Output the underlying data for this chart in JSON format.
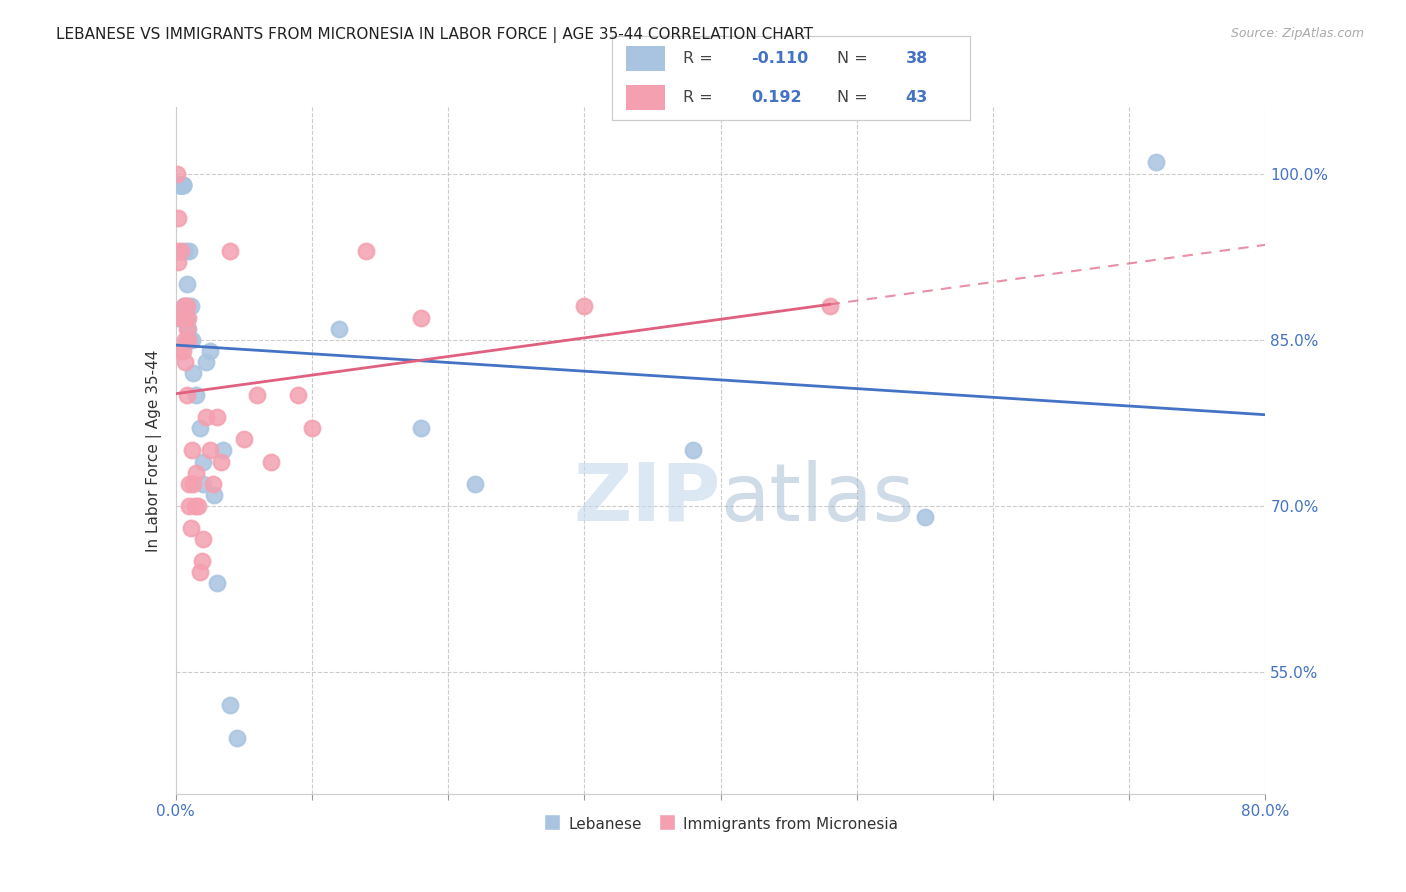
{
  "title": "LEBANESE VS IMMIGRANTS FROM MICRONESIA IN LABOR FORCE | AGE 35-44 CORRELATION CHART",
  "source": "Source: ZipAtlas.com",
  "ylabel": "In Labor Force | Age 35-44",
  "ylabel_right_ticks": [
    "100.0%",
    "85.0%",
    "70.0%",
    "55.0%"
  ],
  "ylabel_right_values": [
    1.0,
    0.85,
    0.7,
    0.55
  ],
  "legend_blue_r": "-0.110",
  "legend_blue_n": "38",
  "legend_pink_r": "0.192",
  "legend_pink_n": "43",
  "blue_color": "#a8c4e0",
  "pink_color": "#f4a0b0",
  "blue_line_color": "#4472c4",
  "pink_line_color": "#e06080",
  "watermark_zip": "ZIP",
  "watermark_atlas": "atlas",
  "blue_points_x": [
    0.001,
    0.002,
    0.003,
    0.003,
    0.004,
    0.004,
    0.005,
    0.005,
    0.005,
    0.006,
    0.006,
    0.007,
    0.008,
    0.008,
    0.008,
    0.009,
    0.01,
    0.01,
    0.011,
    0.012,
    0.013,
    0.015,
    0.018,
    0.02,
    0.02,
    0.022,
    0.025,
    0.028,
    0.03,
    0.035,
    0.04,
    0.045,
    0.12,
    0.18,
    0.22,
    0.38,
    0.55,
    0.72
  ],
  "blue_points_y": [
    0.87,
    0.99,
    0.99,
    0.99,
    0.99,
    0.99,
    0.99,
    0.99,
    0.99,
    0.88,
    0.87,
    0.93,
    0.9,
    0.88,
    0.87,
    0.86,
    0.85,
    0.93,
    0.88,
    0.85,
    0.82,
    0.8,
    0.77,
    0.74,
    0.72,
    0.83,
    0.84,
    0.71,
    0.63,
    0.75,
    0.52,
    0.49,
    0.86,
    0.77,
    0.72,
    0.75,
    0.69,
    1.01
  ],
  "pink_points_x": [
    0.001,
    0.001,
    0.002,
    0.002,
    0.003,
    0.003,
    0.004,
    0.005,
    0.005,
    0.006,
    0.007,
    0.007,
    0.008,
    0.008,
    0.008,
    0.009,
    0.009,
    0.01,
    0.01,
    0.011,
    0.012,
    0.013,
    0.014,
    0.015,
    0.016,
    0.018,
    0.019,
    0.02,
    0.022,
    0.025,
    0.027,
    0.03,
    0.033,
    0.04,
    0.05,
    0.06,
    0.07,
    0.09,
    0.1,
    0.14,
    0.18,
    0.3,
    0.48
  ],
  "pink_points_y": [
    1.0,
    0.93,
    0.92,
    0.96,
    0.84,
    0.87,
    0.93,
    0.87,
    0.84,
    0.88,
    0.85,
    0.83,
    0.88,
    0.86,
    0.8,
    0.87,
    0.85,
    0.72,
    0.7,
    0.68,
    0.75,
    0.72,
    0.7,
    0.73,
    0.7,
    0.64,
    0.65,
    0.67,
    0.78,
    0.75,
    0.72,
    0.78,
    0.74,
    0.93,
    0.76,
    0.8,
    0.74,
    0.8,
    0.77,
    0.93,
    0.87,
    0.88,
    0.88
  ]
}
